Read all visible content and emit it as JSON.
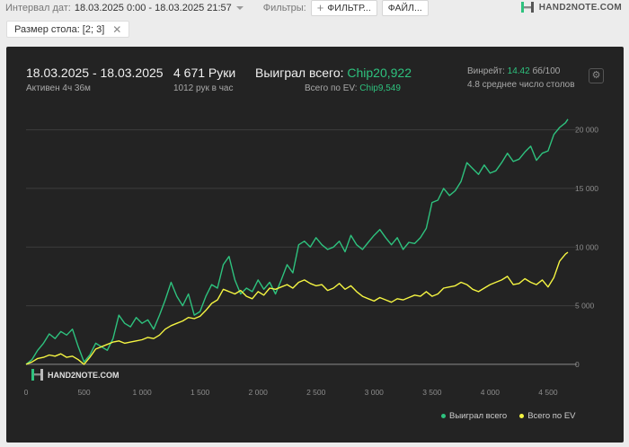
{
  "toolbar": {
    "interval_label": "Интервал дат:",
    "interval_value": "18.03.2025 0:00 - 18.03.2025 21:57",
    "filters_label": "Фильтры:",
    "filter_button": "ФИЛЬТР...",
    "file_button": "ФАЙЛ..."
  },
  "brand": {
    "name": "HAND2NOTE.COM"
  },
  "active_filter": {
    "label": "Размер стола: [2; 3]"
  },
  "stats": {
    "period": "18.03.2025 - 18.03.2025",
    "active": "Активен 4ч 36м",
    "hands": "4 671 Руки",
    "hands_per_hour": "1012 рук в час",
    "won_label": "Выиграл всего:",
    "won_value": "Chip20,922",
    "ev_label": "Всего по EV:",
    "ev_value": "Chip9,549",
    "winrate_label": "Винрейт:",
    "winrate_value": "14.42",
    "winrate_unit": "бб/100",
    "tables": "4.8 среднее число столов"
  },
  "colors": {
    "won": "#2ec27e",
    "ev": "#f5f542",
    "panel_bg": "#232323"
  },
  "icons": {
    "gear": "gear-icon",
    "close": "close-icon",
    "plus": "plus-icon",
    "caret": "chevron-down-icon"
  },
  "watermark": "HAND2NOTE.COM",
  "chart_data": {
    "type": "line",
    "x_ticks": [
      "0",
      "500",
      "1 000",
      "1 500",
      "2 000",
      "2 500",
      "3 000",
      "3 500",
      "4 000",
      "4 500"
    ],
    "y_ticks": [
      "0",
      "5 000",
      "10 000",
      "15 000",
      "20 000"
    ],
    "xlim": [
      0,
      4671
    ],
    "ylim": [
      -1000,
      21500
    ],
    "grid": true,
    "legend_position": "bottom-right",
    "series": [
      {
        "name": "Выиграл всего",
        "color": "#2ec27e",
        "x": [
          0,
          50,
          100,
          150,
          200,
          250,
          300,
          350,
          400,
          450,
          500,
          550,
          600,
          650,
          700,
          750,
          800,
          850,
          900,
          950,
          1000,
          1050,
          1100,
          1150,
          1200,
          1250,
          1300,
          1350,
          1400,
          1450,
          1500,
          1550,
          1600,
          1650,
          1700,
          1750,
          1800,
          1850,
          1900,
          1950,
          2000,
          2050,
          2100,
          2150,
          2200,
          2250,
          2300,
          2350,
          2400,
          2450,
          2500,
          2550,
          2600,
          2650,
          2700,
          2750,
          2800,
          2850,
          2900,
          2950,
          3000,
          3050,
          3100,
          3150,
          3200,
          3250,
          3300,
          3350,
          3400,
          3450,
          3500,
          3550,
          3600,
          3650,
          3700,
          3750,
          3800,
          3850,
          3900,
          3950,
          4000,
          4050,
          4100,
          4150,
          4200,
          4250,
          4300,
          4350,
          4400,
          4450,
          4500,
          4550,
          4600,
          4650,
          4671
        ],
        "y": [
          0,
          400,
          1200,
          1800,
          2600,
          2200,
          2800,
          2500,
          3000,
          1500,
          200,
          800,
          1800,
          1500,
          1200,
          2200,
          4200,
          3500,
          3200,
          4000,
          3500,
          3800,
          3000,
          4200,
          5500,
          7000,
          5800,
          5000,
          6000,
          4200,
          4500,
          5800,
          6800,
          6500,
          8500,
          9200,
          7200,
          6000,
          6500,
          6200,
          7200,
          6400,
          7000,
          6000,
          7200,
          8500,
          7800,
          10200,
          10500,
          10000,
          10800,
          10200,
          9800,
          10000,
          10500,
          9600,
          11000,
          10200,
          9800,
          10400,
          11000,
          11500,
          10800,
          10200,
          10800,
          9800,
          10400,
          10300,
          10800,
          11600,
          13800,
          14000,
          15000,
          14400,
          14800,
          15600,
          17200,
          16700,
          16200,
          17000,
          16300,
          16500,
          17200,
          18000,
          17300,
          17500,
          18100,
          18600,
          17400,
          18000,
          18200,
          19600,
          20200,
          20600,
          20900
        ]
      },
      {
        "name": "Всего по EV",
        "color": "#f5f542",
        "x": [
          0,
          50,
          100,
          150,
          200,
          250,
          300,
          350,
          400,
          450,
          500,
          550,
          600,
          650,
          700,
          750,
          800,
          850,
          900,
          950,
          1000,
          1050,
          1100,
          1150,
          1200,
          1250,
          1300,
          1350,
          1400,
          1450,
          1500,
          1550,
          1600,
          1650,
          1700,
          1750,
          1800,
          1850,
          1900,
          1950,
          2000,
          2050,
          2100,
          2150,
          2200,
          2250,
          2300,
          2350,
          2400,
          2450,
          2500,
          2550,
          2600,
          2650,
          2700,
          2750,
          2800,
          2850,
          2900,
          2950,
          3000,
          3050,
          3100,
          3150,
          3200,
          3250,
          3300,
          3350,
          3400,
          3450,
          3500,
          3550,
          3600,
          3650,
          3700,
          3750,
          3800,
          3850,
          3900,
          3950,
          4000,
          4050,
          4100,
          4150,
          4200,
          4250,
          4300,
          4350,
          4400,
          4450,
          4500,
          4550,
          4600,
          4650,
          4671
        ],
        "y": [
          0,
          200,
          500,
          600,
          800,
          700,
          900,
          600,
          700,
          400,
          0,
          600,
          1300,
          1500,
          1700,
          1900,
          2000,
          1800,
          1900,
          2000,
          2100,
          2300,
          2200,
          2500,
          3000,
          3300,
          3500,
          3700,
          4000,
          3900,
          4100,
          4600,
          5200,
          5500,
          6400,
          6200,
          6000,
          6300,
          5800,
          5600,
          6200,
          5900,
          6500,
          6400,
          6600,
          6800,
          6500,
          7000,
          7200,
          6900,
          6700,
          6800,
          6300,
          6500,
          6900,
          6400,
          6700,
          6200,
          5800,
          5600,
          5400,
          5700,
          5500,
          5300,
          5600,
          5500,
          5700,
          5900,
          5800,
          6200,
          5800,
          6000,
          6500,
          6600,
          6700,
          7000,
          6800,
          6400,
          6200,
          6500,
          6800,
          7000,
          7200,
          7500,
          6800,
          6900,
          7300,
          7000,
          6800,
          7200,
          6600,
          7400,
          8800,
          9400,
          9550
        ]
      }
    ]
  }
}
